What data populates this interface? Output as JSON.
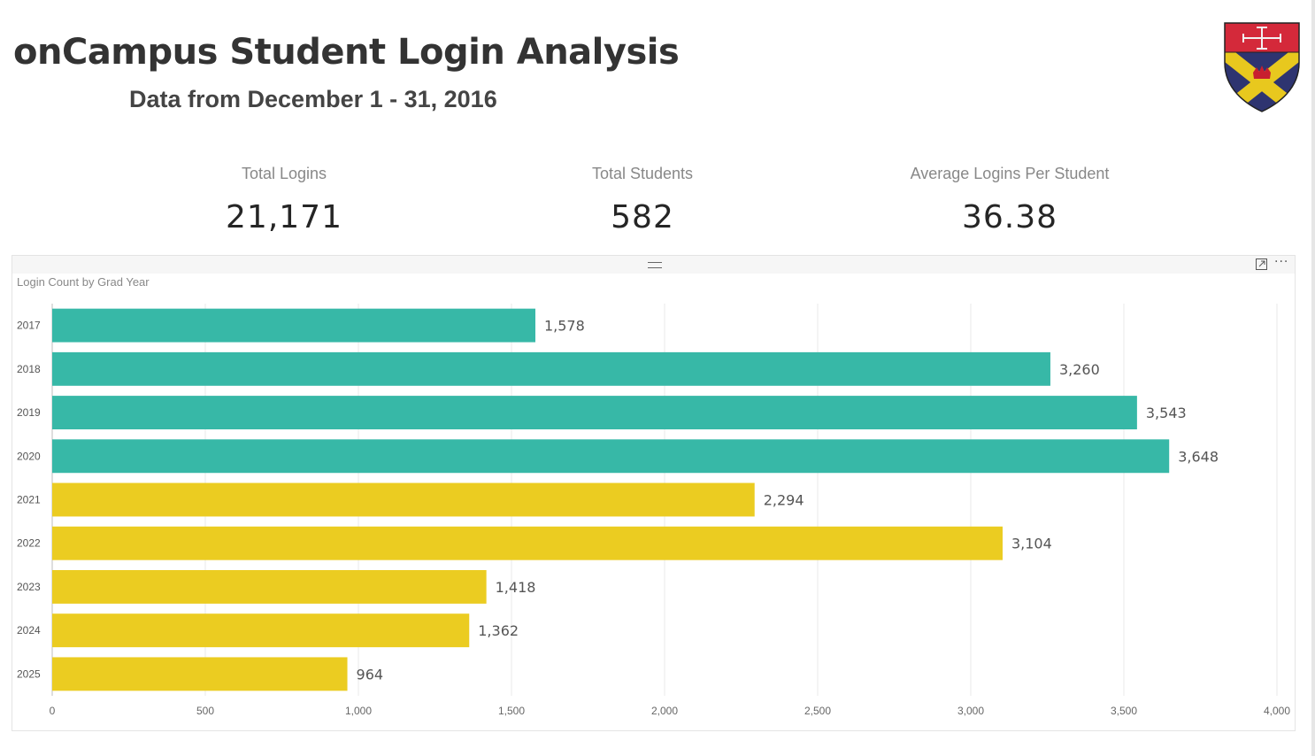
{
  "header": {
    "title": "onCampus Student Login Analysis",
    "subtitle": "Data from December 1 - 31, 2016"
  },
  "kpis": [
    {
      "label": "Total Logins",
      "value": "21,171"
    },
    {
      "label": "Total Students",
      "value": "582"
    },
    {
      "label": "Average Logins Per Student",
      "value": "36.38"
    }
  ],
  "crest": {
    "icon": "school-crest-logo",
    "colors": {
      "top": "#d4293a",
      "shield": "#2e3470",
      "saltire": "#e8c81e"
    }
  },
  "visual": {
    "focus_icon": "focus-mode-icon",
    "more_icon": "more-options-icon",
    "more_glyph": "···"
  },
  "chart_data": {
    "type": "bar",
    "orientation": "horizontal",
    "title": "Login Count by Grad Year",
    "categories": [
      "2017",
      "2018",
      "2019",
      "2020",
      "2021",
      "2022",
      "2023",
      "2024",
      "2025"
    ],
    "values": [
      1578,
      3260,
      3543,
      3648,
      2294,
      3104,
      1418,
      1362,
      964
    ],
    "data_labels": [
      "1,578",
      "3,260",
      "3,543",
      "3,648",
      "2,294",
      "3,104",
      "1,418",
      "1,362",
      "964"
    ],
    "bar_colors": [
      "#37b8a7",
      "#37b8a7",
      "#37b8a7",
      "#37b8a7",
      "#ebcc21",
      "#ebcc21",
      "#ebcc21",
      "#ebcc21",
      "#ebcc21"
    ],
    "x_ticks": [
      0,
      500,
      1000,
      1500,
      2000,
      2500,
      3000,
      3500,
      4000
    ],
    "x_tick_labels": [
      "0",
      "500",
      "1,000",
      "1,500",
      "2,000",
      "2,500",
      "3,000",
      "3,500",
      "4,000"
    ],
    "xlim": [
      0,
      4000
    ],
    "grid": true
  }
}
